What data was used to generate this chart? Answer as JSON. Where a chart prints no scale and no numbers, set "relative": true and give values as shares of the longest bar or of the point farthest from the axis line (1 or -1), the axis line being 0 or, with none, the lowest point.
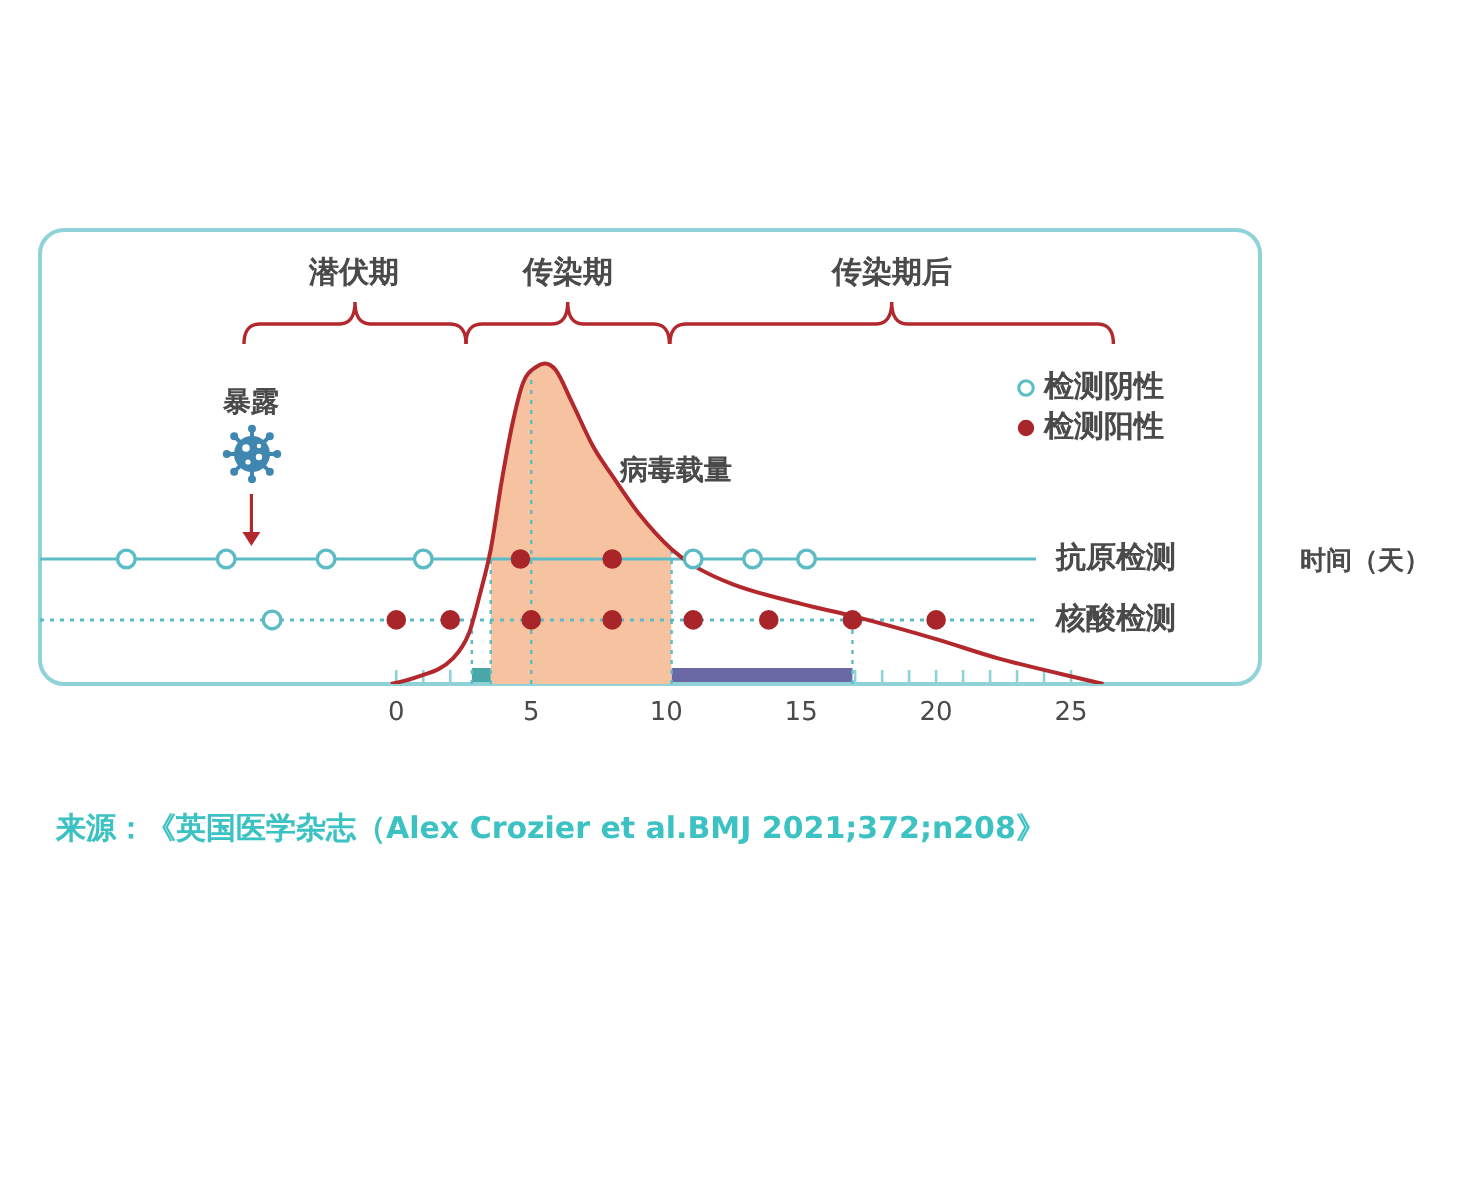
{
  "chart_data": {
    "type": "line",
    "relative": true,
    "xlabel": "时间（天）",
    "xlim": [
      -13.2,
      32
    ],
    "xticks": [
      0,
      {
        "value": 1,
        "label": null
      },
      {
        "value": 2,
        "label": null
      },
      {
        "value": 3,
        "label": null
      },
      {
        "value": 4,
        "label": null
      },
      5,
      {
        "value": 6,
        "label": null
      },
      {
        "value": 7,
        "label": null
      },
      {
        "value": 8,
        "label": null
      },
      {
        "value": 9,
        "label": null
      },
      10,
      {
        "value": 11,
        "label": null
      },
      {
        "value": 12,
        "label": null
      },
      {
        "value": 13,
        "label": null
      },
      {
        "value": 14,
        "label": null
      },
      15,
      {
        "value": 16,
        "label": null
      },
      {
        "value": 17,
        "label": null
      },
      {
        "value": 18,
        "label": null
      },
      {
        "value": 19,
        "label": null
      },
      20,
      {
        "value": 21,
        "label": null
      },
      {
        "value": 22,
        "label": null
      },
      {
        "value": 23,
        "label": null
      },
      {
        "value": 24,
        "label": null
      },
      25
    ],
    "tick_labels": "x",
    "legend": "top right",
    "series": [
      {
        "type": "area",
        "color": "#f6c29f",
        "x": [
          3.5,
          3.9,
          4.3,
          4.7,
          5.2,
          5.5,
          5.9,
          6.5,
          7.3,
          8,
          9,
          10.2
        ],
        "values": [
          0.42,
          0.63,
          0.81,
          0.94,
          0.99,
          1,
          0.98,
          0.88,
          0.74,
          0.65,
          0.53,
          0.42
        ]
      },
      {
        "name": "病毒载量",
        "type": "line",
        "color": "#b3282d",
        "x": [
          -0.2,
          0.7,
          2.1,
          2.7,
          3.1,
          3.5,
          3.9,
          4.3,
          4.7,
          5.2,
          5.5,
          5.9,
          6.5,
          7.3,
          8,
          9,
          10.2,
          11,
          12.5,
          15,
          17,
          20,
          22.3,
          26.2
        ],
        "values": [
          0,
          0.02,
          0.08,
          0.16,
          0.28,
          0.42,
          0.63,
          0.81,
          0.94,
          0.99,
          1,
          0.98,
          0.88,
          0.74,
          0.65,
          0.53,
          0.42,
          0.37,
          0.31,
          0.25,
          0.21,
          0.14,
          0.08,
          0
        ]
      },
      {
        "name": "检测阴性",
        "type": "scatter",
        "color": "#5cbcc6",
        "marker": "circle",
        "x": [
          -10,
          -6.3,
          -4.6,
          -2.6,
          1,
          11,
          13.2,
          15.2
        ],
        "values": [
          0.39,
          0.39,
          0.2,
          0.39,
          0.39,
          0.39,
          0.39,
          0.39
        ]
      },
      {
        "name": "检测阳性",
        "type": "scatter",
        "color": "#a8262a",
        "marker": "circle",
        "x": [
          0,
          2,
          4.6,
          5,
          8,
          8,
          11,
          13.8,
          16.9,
          20
        ],
        "values": [
          0.2,
          0.2,
          0.39,
          0.2,
          0.39,
          0.2,
          0.2,
          0.2,
          0.2,
          0.2
        ]
      }
    ],
    "ref_lines": [
      {
        "axis": "y",
        "value": 0.39,
        "label": "抗原检测",
        "color": "#5cbcc6",
        "line_style": "solid"
      },
      {
        "axis": "y",
        "value": 0.2,
        "label": "核酸检测",
        "color": "#5cbcc6",
        "line_style": "dotted"
      },
      {
        "axis": "x",
        "value": 2.8,
        "color": "#5cbcc6",
        "line_style": "dotted"
      },
      {
        "axis": "x",
        "value": 3.5,
        "color": "#5cbcc6",
        "line_style": "dotted"
      },
      {
        "axis": "x",
        "value": 5,
        "color": "#5cbcc6",
        "line_style": "dotted"
      },
      {
        "axis": "x",
        "value": 10.2,
        "color": "#5cbcc6",
        "line_style": "dotted"
      },
      {
        "axis": "x",
        "value": 16.9,
        "color": "#5cbcc6",
        "line_style": "dotted"
      }
    ],
    "bands": [
      {
        "axis": "x",
        "from": 2.8,
        "to": 3.5,
        "color": "#4aa7a8"
      },
      {
        "axis": "x",
        "from": 10.2,
        "to": 16.9,
        "color": "#6b68a6"
      }
    ],
    "annotations": [
      "潜伏期",
      "传染期",
      "传染期后",
      "暴露",
      "来源：《英国医学杂志（Alex Crozier et al.BMJ 2021;372;n208》"
    ]
  }
}
